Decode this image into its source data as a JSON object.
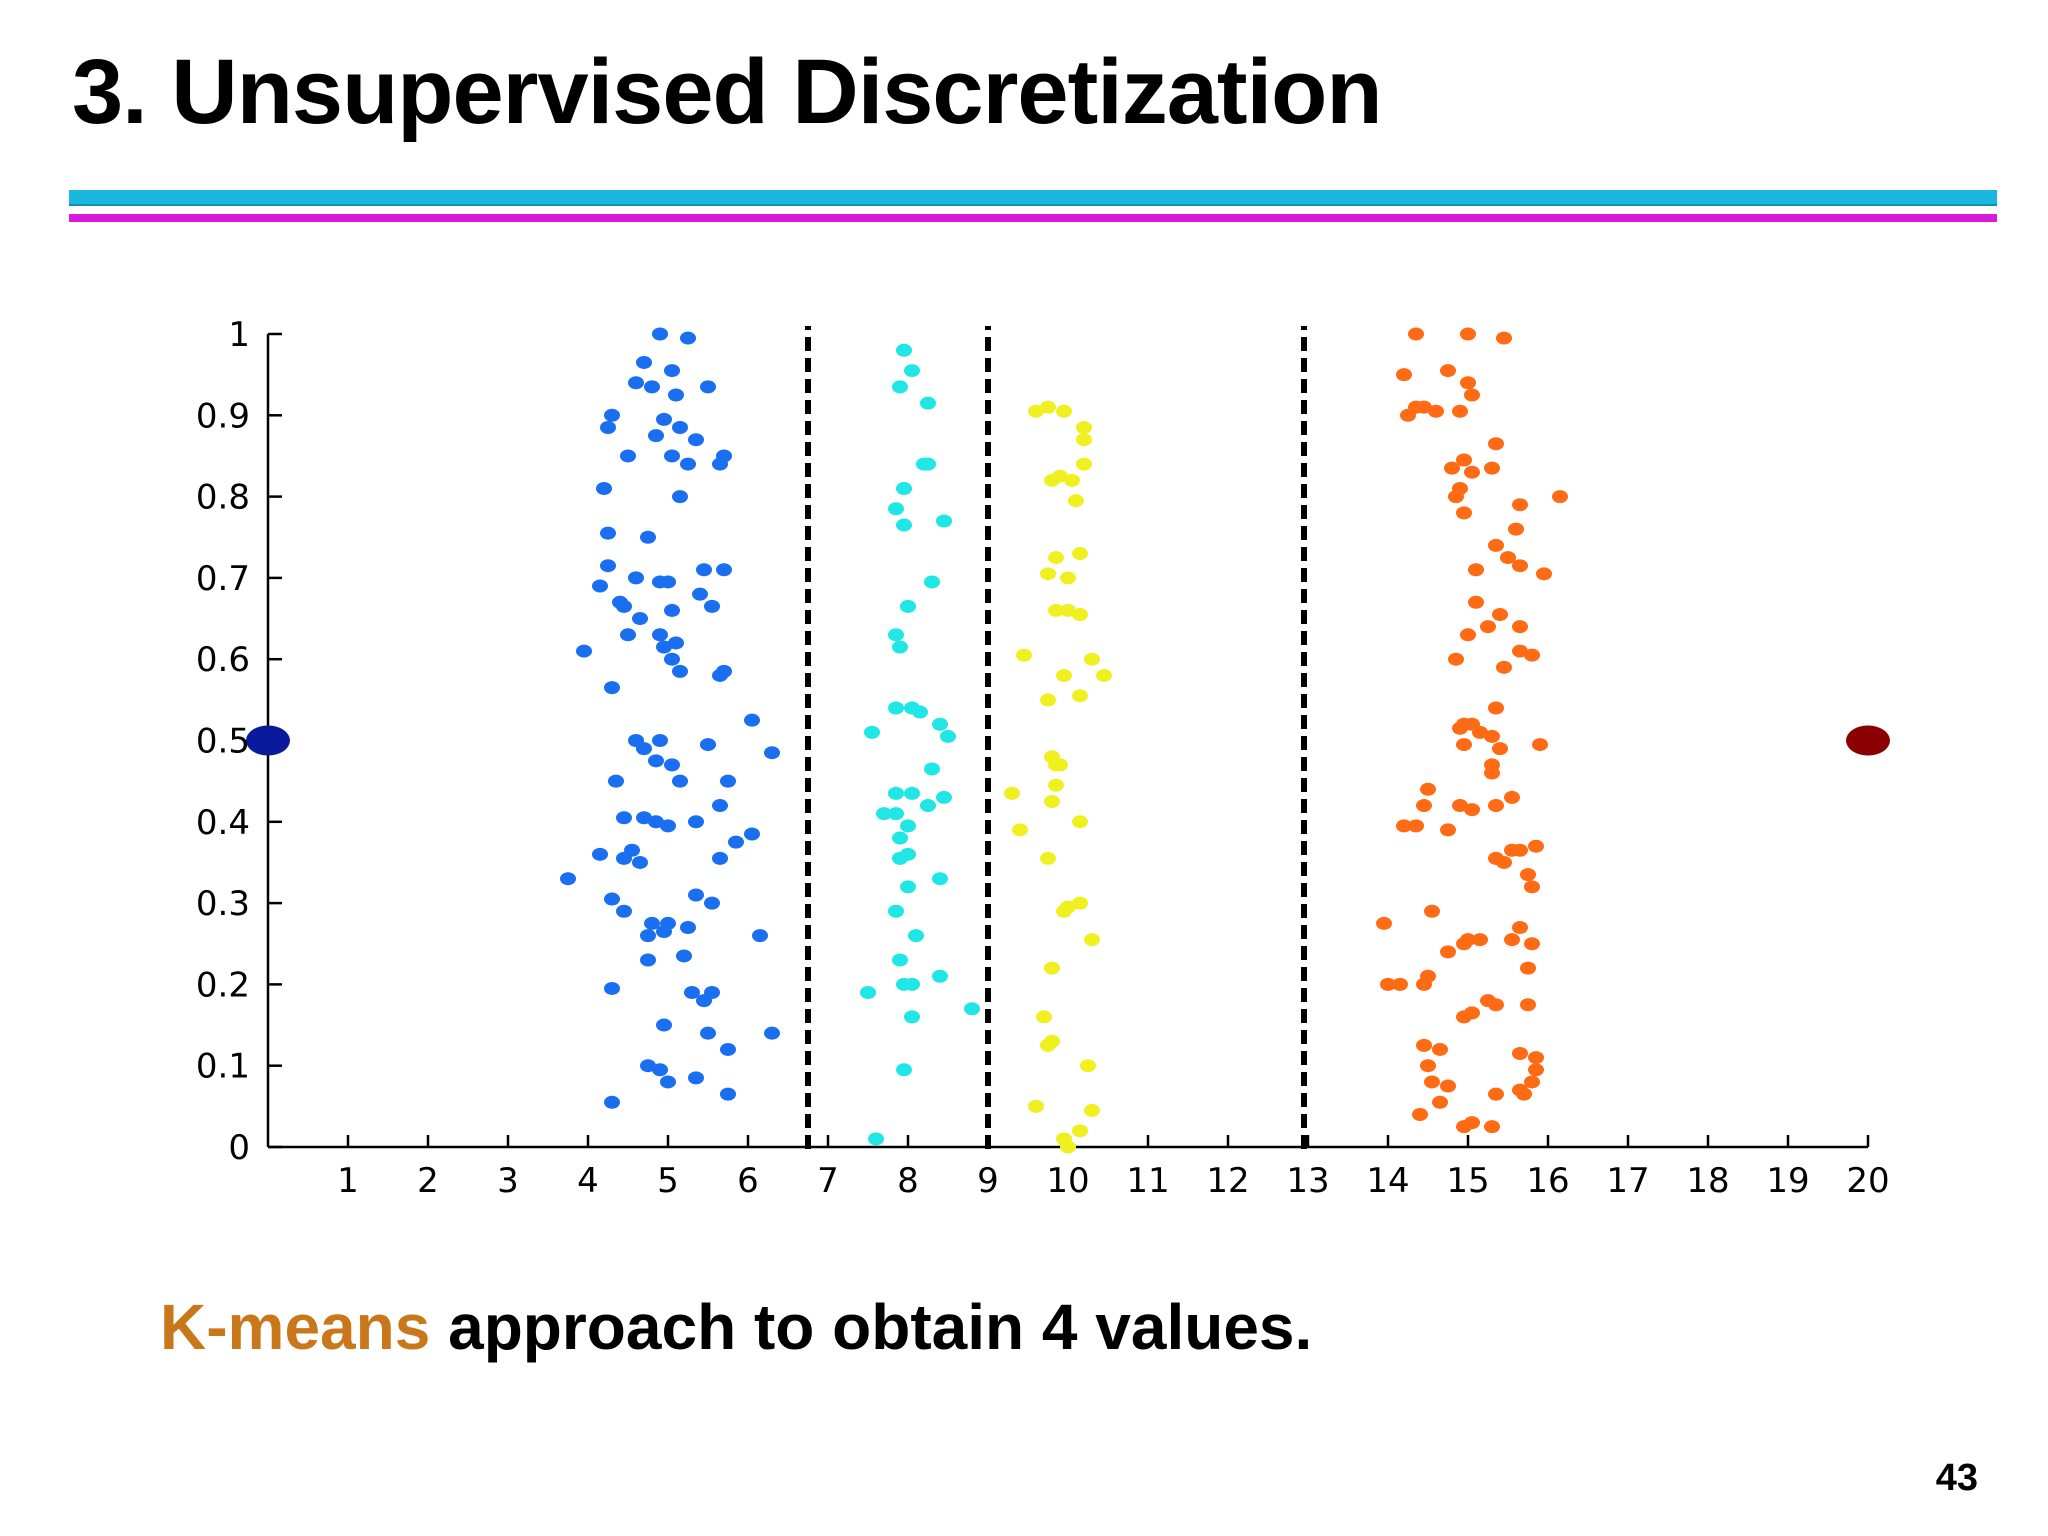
{
  "slide": {
    "title": "3. Unsupervised Discretization",
    "caption_highlight": "K-means",
    "caption_rest": " approach to obtain 4 values.",
    "page_number": "43"
  },
  "colors": {
    "rule_cyan": "#1cb7de",
    "rule_magenta": "#d91ad9",
    "caption_highlight": "#c8781a"
  },
  "chart_data": {
    "type": "scatter",
    "xlim": [
      0,
      20
    ],
    "ylim": [
      0,
      1
    ],
    "xticks": [
      "1",
      "2",
      "3",
      "4",
      "5",
      "6",
      "7",
      "8",
      "9",
      "10",
      "11",
      "12",
      "13",
      "14",
      "15",
      "16",
      "17",
      "18",
      "19",
      "20"
    ],
    "yticks": [
      "0",
      "0.1",
      "0.2",
      "0.3",
      "0.4",
      "0.5",
      "0.6",
      "0.7",
      "0.8",
      "0.9",
      "1"
    ],
    "grid": false,
    "boundaries": [
      6.75,
      9.0,
      12.95
    ],
    "series": [
      {
        "color": "#1a6ef0",
        "points": [
          [
            4.9,
            1.0
          ],
          [
            5.25,
            0.995
          ],
          [
            4.7,
            0.965
          ],
          [
            5.05,
            0.955
          ],
          [
            4.6,
            0.94
          ],
          [
            4.8,
            0.935
          ],
          [
            5.1,
            0.925
          ],
          [
            5.5,
            0.935
          ],
          [
            4.3,
            0.9
          ],
          [
            4.25,
            0.885
          ],
          [
            4.95,
            0.895
          ],
          [
            5.15,
            0.885
          ],
          [
            4.85,
            0.875
          ],
          [
            5.35,
            0.87
          ],
          [
            4.5,
            0.85
          ],
          [
            5.05,
            0.85
          ],
          [
            5.25,
            0.84
          ],
          [
            5.7,
            0.85
          ],
          [
            5.65,
            0.84
          ],
          [
            4.2,
            0.81
          ],
          [
            5.15,
            0.8
          ],
          [
            4.25,
            0.755
          ],
          [
            4.75,
            0.75
          ],
          [
            4.25,
            0.715
          ],
          [
            5.45,
            0.71
          ],
          [
            5.7,
            0.71
          ],
          [
            4.6,
            0.7
          ],
          [
            4.9,
            0.695
          ],
          [
            5.0,
            0.695
          ],
          [
            4.15,
            0.69
          ],
          [
            5.4,
            0.68
          ],
          [
            4.4,
            0.67
          ],
          [
            5.55,
            0.665
          ],
          [
            4.45,
            0.665
          ],
          [
            5.05,
            0.66
          ],
          [
            4.65,
            0.65
          ],
          [
            4.9,
            0.63
          ],
          [
            4.5,
            0.63
          ],
          [
            5.1,
            0.62
          ],
          [
            4.95,
            0.615
          ],
          [
            3.95,
            0.61
          ],
          [
            5.05,
            0.6
          ],
          [
            5.7,
            0.585
          ],
          [
            5.15,
            0.585
          ],
          [
            5.65,
            0.58
          ],
          [
            4.3,
            0.565
          ],
          [
            6.05,
            0.525
          ],
          [
            4.6,
            0.5
          ],
          [
            4.9,
            0.5
          ],
          [
            4.7,
            0.49
          ],
          [
            4.85,
            0.475
          ],
          [
            5.5,
            0.495
          ],
          [
            6.3,
            0.485
          ],
          [
            5.05,
            0.47
          ],
          [
            4.35,
            0.45
          ],
          [
            5.75,
            0.45
          ],
          [
            5.15,
            0.45
          ],
          [
            5.65,
            0.42
          ],
          [
            4.45,
            0.405
          ],
          [
            4.7,
            0.405
          ],
          [
            5.0,
            0.395
          ],
          [
            5.35,
            0.4
          ],
          [
            4.85,
            0.4
          ],
          [
            6.05,
            0.385
          ],
          [
            5.85,
            0.375
          ],
          [
            4.15,
            0.36
          ],
          [
            4.55,
            0.365
          ],
          [
            4.45,
            0.355
          ],
          [
            4.65,
            0.35
          ],
          [
            5.65,
            0.355
          ],
          [
            3.75,
            0.33
          ],
          [
            4.3,
            0.305
          ],
          [
            5.35,
            0.31
          ],
          [
            5.55,
            0.3
          ],
          [
            4.45,
            0.29
          ],
          [
            4.8,
            0.275
          ],
          [
            5.0,
            0.275
          ],
          [
            5.25,
            0.27
          ],
          [
            4.95,
            0.265
          ],
          [
            4.75,
            0.26
          ],
          [
            6.15,
            0.26
          ],
          [
            4.75,
            0.23
          ],
          [
            5.2,
            0.235
          ],
          [
            4.3,
            0.195
          ],
          [
            5.3,
            0.19
          ],
          [
            5.45,
            0.18
          ],
          [
            5.55,
            0.19
          ],
          [
            4.95,
            0.15
          ],
          [
            5.5,
            0.14
          ],
          [
            6.3,
            0.14
          ],
          [
            5.75,
            0.12
          ],
          [
            4.75,
            0.1
          ],
          [
            4.9,
            0.095
          ],
          [
            5.0,
            0.08
          ],
          [
            5.35,
            0.085
          ],
          [
            5.75,
            0.065
          ],
          [
            4.3,
            0.055
          ]
        ]
      },
      {
        "color": "#20e6e6",
        "points": [
          [
            7.95,
            0.98
          ],
          [
            8.05,
            0.955
          ],
          [
            7.9,
            0.935
          ],
          [
            8.25,
            0.915
          ],
          [
            8.2,
            0.84
          ],
          [
            8.25,
            0.84
          ],
          [
            7.95,
            0.81
          ],
          [
            7.85,
            0.785
          ],
          [
            7.95,
            0.765
          ],
          [
            8.45,
            0.77
          ],
          [
            8.3,
            0.695
          ],
          [
            8.0,
            0.665
          ],
          [
            7.85,
            0.63
          ],
          [
            7.9,
            0.615
          ],
          [
            7.85,
            0.54
          ],
          [
            8.05,
            0.54
          ],
          [
            8.15,
            0.535
          ],
          [
            8.4,
            0.52
          ],
          [
            7.55,
            0.51
          ],
          [
            8.5,
            0.505
          ],
          [
            8.3,
            0.465
          ],
          [
            7.85,
            0.435
          ],
          [
            8.05,
            0.435
          ],
          [
            8.45,
            0.43
          ],
          [
            8.25,
            0.42
          ],
          [
            7.85,
            0.41
          ],
          [
            7.7,
            0.41
          ],
          [
            8.0,
            0.395
          ],
          [
            7.9,
            0.38
          ],
          [
            8.0,
            0.36
          ],
          [
            7.9,
            0.355
          ],
          [
            8.0,
            0.32
          ],
          [
            8.4,
            0.33
          ],
          [
            7.85,
            0.29
          ],
          [
            8.1,
            0.26
          ],
          [
            7.9,
            0.23
          ],
          [
            8.4,
            0.21
          ],
          [
            7.95,
            0.2
          ],
          [
            8.05,
            0.2
          ],
          [
            7.5,
            0.19
          ],
          [
            8.05,
            0.16
          ],
          [
            8.8,
            0.17
          ],
          [
            7.95,
            0.095
          ],
          [
            7.6,
            0.01
          ]
        ]
      },
      {
        "color": "#f0f020",
        "points": [
          [
            9.6,
            0.905
          ],
          [
            9.75,
            0.91
          ],
          [
            9.95,
            0.905
          ],
          [
            10.2,
            0.885
          ],
          [
            10.2,
            0.87
          ],
          [
            10.2,
            0.84
          ],
          [
            9.9,
            0.825
          ],
          [
            9.8,
            0.82
          ],
          [
            10.05,
            0.82
          ],
          [
            10.1,
            0.795
          ],
          [
            10.15,
            0.73
          ],
          [
            9.85,
            0.725
          ],
          [
            9.75,
            0.705
          ],
          [
            10.0,
            0.7
          ],
          [
            9.85,
            0.66
          ],
          [
            10.0,
            0.66
          ],
          [
            10.15,
            0.655
          ],
          [
            9.45,
            0.605
          ],
          [
            10.3,
            0.6
          ],
          [
            10.45,
            0.58
          ],
          [
            9.95,
            0.58
          ],
          [
            10.15,
            0.555
          ],
          [
            9.75,
            0.55
          ],
          [
            9.8,
            0.48
          ],
          [
            9.85,
            0.47
          ],
          [
            9.9,
            0.47
          ],
          [
            9.3,
            0.435
          ],
          [
            9.85,
            0.445
          ],
          [
            9.8,
            0.425
          ],
          [
            10.15,
            0.4
          ],
          [
            9.4,
            0.39
          ],
          [
            9.75,
            0.355
          ],
          [
            10.15,
            0.3
          ],
          [
            10.0,
            0.295
          ],
          [
            9.95,
            0.29
          ],
          [
            10.3,
            0.255
          ],
          [
            9.8,
            0.22
          ],
          [
            9.7,
            0.16
          ],
          [
            9.8,
            0.13
          ],
          [
            9.75,
            0.125
          ],
          [
            10.25,
            0.1
          ],
          [
            9.6,
            0.05
          ],
          [
            10.3,
            0.045
          ],
          [
            10.15,
            0.02
          ],
          [
            9.95,
            0.01
          ],
          [
            10.0,
            0.0
          ]
        ]
      },
      {
        "color": "#ff6a14",
        "points": [
          [
            14.35,
            1.0
          ],
          [
            15.0,
            1.0
          ],
          [
            15.45,
            0.995
          ],
          [
            14.2,
            0.95
          ],
          [
            14.75,
            0.955
          ],
          [
            15.0,
            0.94
          ],
          [
            15.05,
            0.925
          ],
          [
            14.35,
            0.91
          ],
          [
            14.45,
            0.91
          ],
          [
            14.25,
            0.9
          ],
          [
            14.9,
            0.905
          ],
          [
            14.6,
            0.905
          ],
          [
            15.35,
            0.865
          ],
          [
            14.95,
            0.845
          ],
          [
            14.8,
            0.835
          ],
          [
            15.05,
            0.83
          ],
          [
            15.3,
            0.835
          ],
          [
            14.9,
            0.81
          ],
          [
            14.85,
            0.8
          ],
          [
            15.65,
            0.79
          ],
          [
            16.15,
            0.8
          ],
          [
            14.95,
            0.78
          ],
          [
            15.6,
            0.76
          ],
          [
            15.35,
            0.74
          ],
          [
            15.5,
            0.725
          ],
          [
            15.65,
            0.715
          ],
          [
            15.95,
            0.705
          ],
          [
            15.1,
            0.71
          ],
          [
            15.1,
            0.67
          ],
          [
            15.4,
            0.655
          ],
          [
            15.25,
            0.64
          ],
          [
            15.65,
            0.64
          ],
          [
            15.0,
            0.63
          ],
          [
            15.65,
            0.61
          ],
          [
            15.8,
            0.605
          ],
          [
            14.85,
            0.6
          ],
          [
            15.45,
            0.59
          ],
          [
            15.35,
            0.54
          ],
          [
            14.95,
            0.52
          ],
          [
            15.05,
            0.52
          ],
          [
            14.9,
            0.515
          ],
          [
            15.3,
            0.505
          ],
          [
            15.15,
            0.51
          ],
          [
            14.95,
            0.495
          ],
          [
            15.4,
            0.49
          ],
          [
            15.9,
            0.495
          ],
          [
            15.3,
            0.47
          ],
          [
            15.3,
            0.46
          ],
          [
            14.5,
            0.44
          ],
          [
            15.55,
            0.43
          ],
          [
            14.45,
            0.42
          ],
          [
            14.9,
            0.42
          ],
          [
            15.05,
            0.415
          ],
          [
            15.35,
            0.42
          ],
          [
            14.2,
            0.395
          ],
          [
            14.35,
            0.395
          ],
          [
            14.75,
            0.39
          ],
          [
            15.55,
            0.365
          ],
          [
            15.65,
            0.365
          ],
          [
            15.85,
            0.37
          ],
          [
            15.35,
            0.355
          ],
          [
            15.45,
            0.35
          ],
          [
            15.75,
            0.335
          ],
          [
            15.8,
            0.32
          ],
          [
            14.55,
            0.29
          ],
          [
            13.95,
            0.275
          ],
          [
            15.65,
            0.27
          ],
          [
            15.15,
            0.255
          ],
          [
            15.0,
            0.255
          ],
          [
            14.95,
            0.25
          ],
          [
            15.55,
            0.255
          ],
          [
            15.8,
            0.25
          ],
          [
            14.75,
            0.24
          ],
          [
            15.75,
            0.22
          ],
          [
            14.5,
            0.21
          ],
          [
            14.45,
            0.2
          ],
          [
            14.0,
            0.2
          ],
          [
            14.15,
            0.2
          ],
          [
            15.25,
            0.18
          ],
          [
            15.35,
            0.175
          ],
          [
            15.75,
            0.175
          ],
          [
            14.95,
            0.16
          ],
          [
            15.05,
            0.165
          ],
          [
            14.45,
            0.125
          ],
          [
            14.65,
            0.12
          ],
          [
            15.65,
            0.115
          ],
          [
            15.85,
            0.11
          ],
          [
            14.5,
            0.1
          ],
          [
            15.85,
            0.095
          ],
          [
            15.8,
            0.08
          ],
          [
            14.55,
            0.08
          ],
          [
            14.75,
            0.075
          ],
          [
            15.65,
            0.07
          ],
          [
            15.7,
            0.065
          ],
          [
            15.35,
            0.065
          ],
          [
            14.65,
            0.055
          ],
          [
            14.4,
            0.04
          ],
          [
            15.05,
            0.03
          ],
          [
            14.95,
            0.025
          ],
          [
            15.3,
            0.025
          ]
        ]
      },
      {
        "color": "#0a1a9a",
        "points": [
          [
            0.0,
            0.5
          ]
        ]
      },
      {
        "color": "#8b0000",
        "points": [
          [
            20.0,
            0.5
          ]
        ]
      }
    ]
  }
}
